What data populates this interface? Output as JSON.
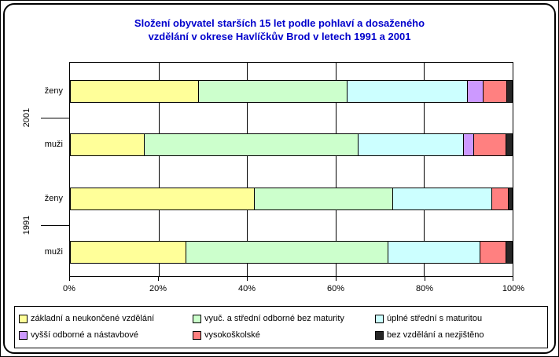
{
  "chart": {
    "title_line1": "Složení obyvatel starších 15 let podle pohlaví a dosaženého",
    "title_line2": "vzdělání v okrese Havlíčkův Brod v letech 1991 a 2001"
  },
  "colors": {
    "title": "#0000CC",
    "axis_text": "#000000",
    "plot_border": "#000000",
    "background": "#FFFFFF"
  },
  "chart_data": {
    "type": "bar",
    "orientation": "horizontal",
    "stacked": true,
    "value_unit": "percent",
    "title": "Složení obyvatel starších 15 let podle pohlaví a dosaženého vzdělání v okrese Havlíčkův Brod v letech 1991 a 2001",
    "x_axis": {
      "min": 0,
      "max": 100,
      "tick_labels": [
        "0%",
        "20%",
        "40%",
        "60%",
        "80%",
        "100%"
      ],
      "gridlines_at": [
        20,
        40,
        60,
        80
      ],
      "grid": true
    },
    "groups": [
      "2001",
      "1991"
    ],
    "series": [
      {
        "name": "základní a neukončené vzdělání",
        "color": "#FFFF99"
      },
      {
        "name": "vyuč. a střední odborné bez maturity",
        "color": "#CCFFCC"
      },
      {
        "name": "úplné střední s maturitou",
        "color": "#CCFFFF"
      },
      {
        "name": "vyšší odborné a nástavbové",
        "color": "#CC99FF"
      },
      {
        "name": "vysokoškolské",
        "color": "#FF8080"
      },
      {
        "name": "bez vzdělání a nezjištěno",
        "color": "#262626"
      }
    ],
    "bars": [
      {
        "group": "2001",
        "category": "ženy",
        "values": [
          29.2,
          33.8,
          27.2,
          3.5,
          5.3,
          1.0
        ]
      },
      {
        "group": "2001",
        "category": "muži",
        "values": [
          16.7,
          48.7,
          23.9,
          2.3,
          7.1,
          1.3
        ]
      },
      {
        "group": "1991",
        "category": "ženy",
        "values": [
          41.9,
          31.4,
          22.3,
          0,
          3.7,
          0.7
        ]
      },
      {
        "group": "1991",
        "category": "muži",
        "values": [
          26.2,
          45.9,
          20.9,
          0,
          5.8,
          1.2
        ]
      }
    ],
    "legend": {
      "position": "bottom",
      "rows": 2,
      "columns": 3
    }
  }
}
